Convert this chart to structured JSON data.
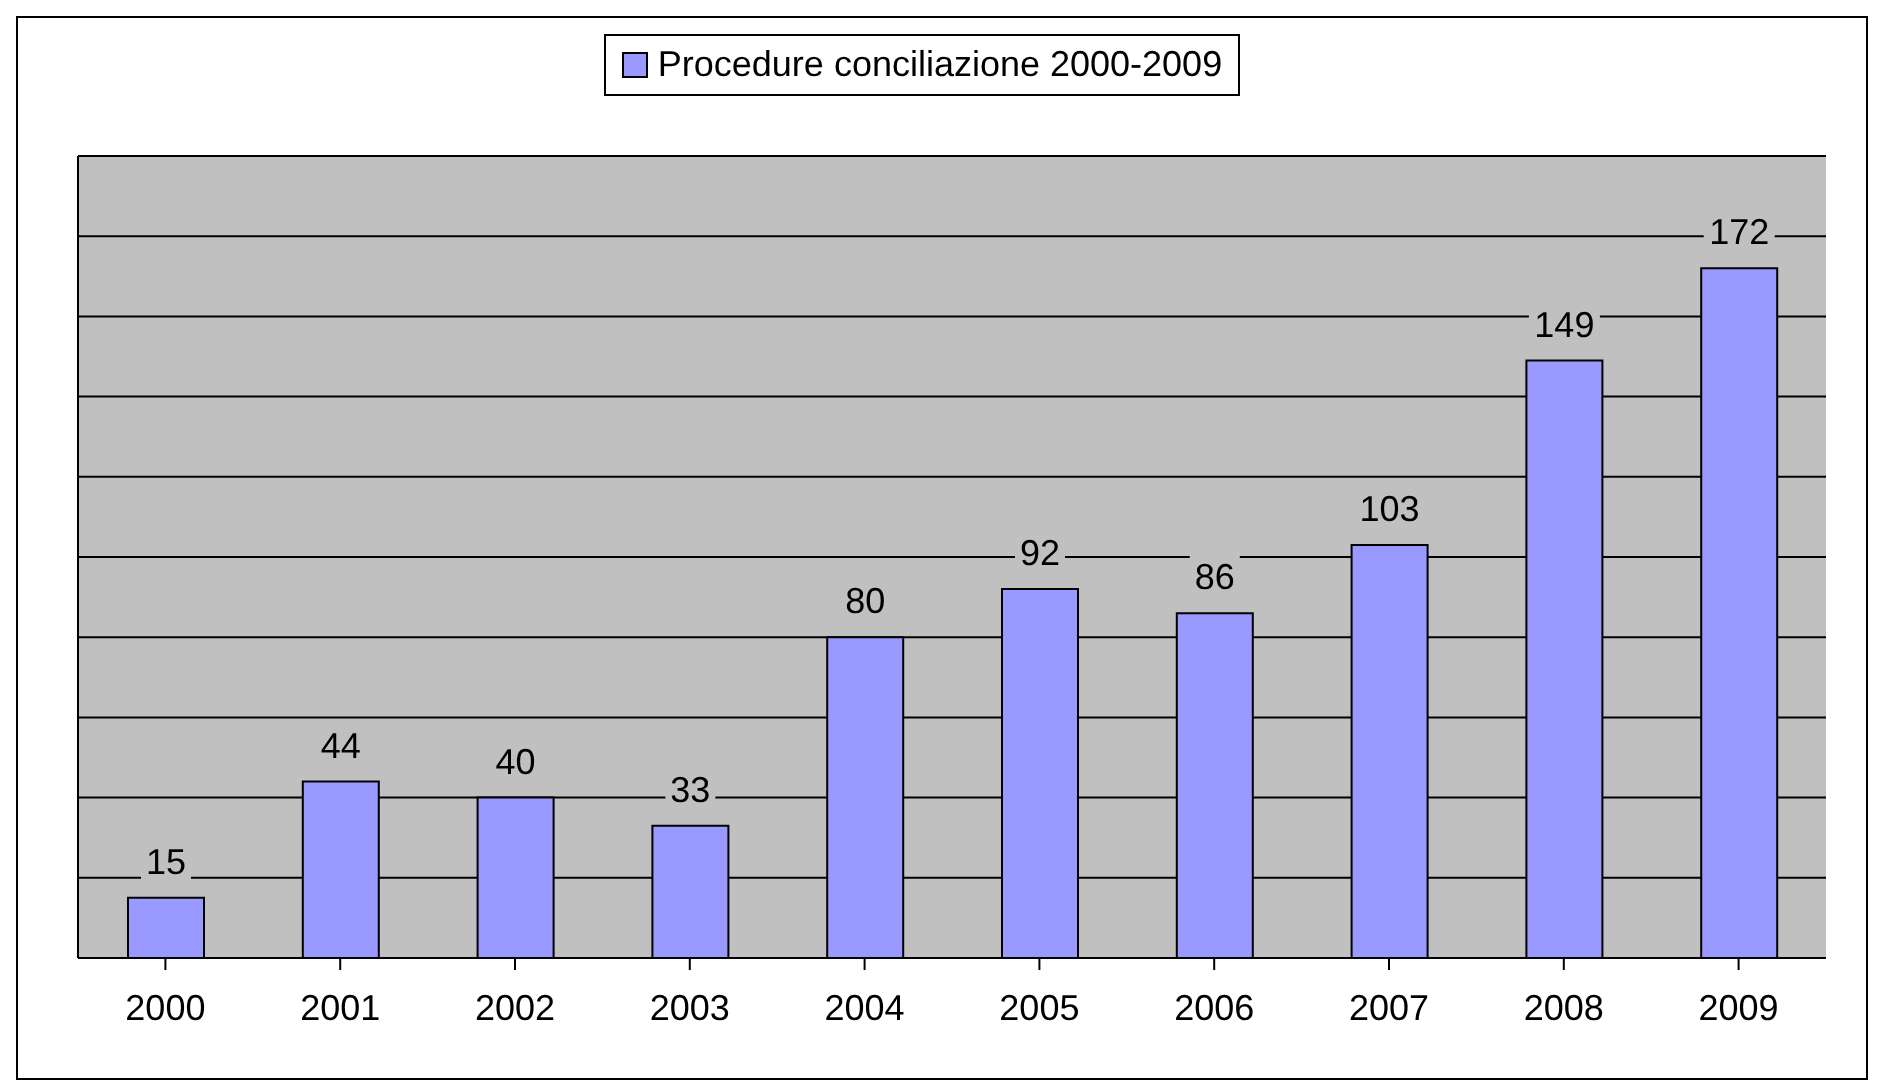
{
  "chart_data": {
    "type": "bar",
    "categories": [
      "2000",
      "2001",
      "2002",
      "2003",
      "2004",
      "2005",
      "2006",
      "2007",
      "2008",
      "2009"
    ],
    "series": [
      {
        "name": "Procedure conciliazione 2000-2009",
        "color": "#9999ff",
        "values": [
          15,
          44,
          40,
          33,
          80,
          92,
          86,
          103,
          149,
          172
        ]
      }
    ],
    "ylim": [
      0,
      200
    ],
    "yticks": [
      {
        "value": 0,
        "label": null
      },
      {
        "value": 20,
        "label": null
      },
      {
        "value": 40,
        "label": null
      },
      {
        "value": 60,
        "label": null
      },
      {
        "value": 80,
        "label": null
      },
      {
        "value": 100,
        "label": null
      },
      {
        "value": 120,
        "label": null
      },
      {
        "value": 140,
        "label": null
      },
      {
        "value": 160,
        "label": null
      },
      {
        "value": 180,
        "label": null
      },
      {
        "value": 200,
        "label": null
      }
    ],
    "tick_labels": "x",
    "grid": "y",
    "legend": "top",
    "data_labels": true
  }
}
